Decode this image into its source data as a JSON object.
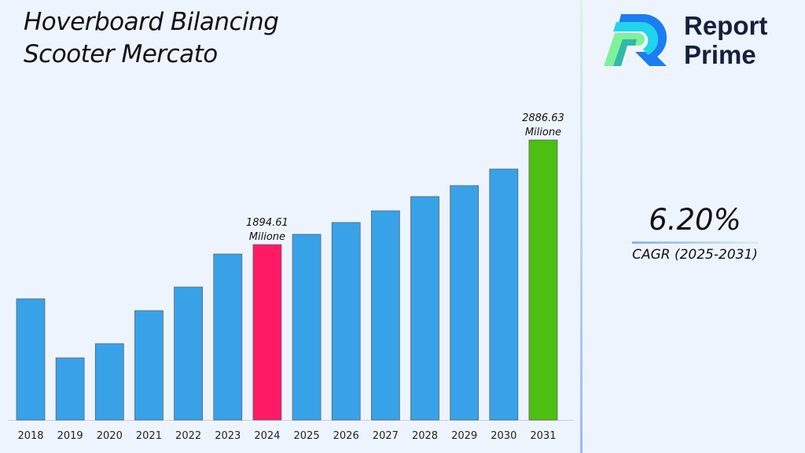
{
  "title_line1": "Hoverboard Bilancing",
  "title_line2": "Scooter Mercato",
  "logo": {
    "line1": "Report",
    "line2": "Prime"
  },
  "cagr": {
    "value": "6.20%",
    "label": "CAGR (2025-2031)"
  },
  "chart_data": {
    "type": "bar",
    "title": "Hoverboard Bilancing Scooter Mercato",
    "categories": [
      "2018",
      "2019",
      "2020",
      "2021",
      "2022",
      "2023",
      "2024",
      "2025",
      "2026",
      "2027",
      "2028",
      "2029",
      "2030",
      "2031"
    ],
    "values": [
      1380,
      820,
      955,
      1268,
      1492,
      1805,
      1894.61,
      1992,
      2104,
      2215,
      2350,
      2454,
      2611,
      2886.63
    ],
    "colors": {
      "default": "#38a2e8",
      "highlight_2024": "#ff1a66",
      "highlight_2031": "#4cbf10"
    },
    "annotations": [
      {
        "category": "2024",
        "line1": "1894.61",
        "line2": "Milione"
      },
      {
        "category": "2031",
        "line1": "2886.63",
        "line2": "Milione"
      }
    ],
    "ylim": [
      231,
      2886.63
    ],
    "grid": false
  }
}
